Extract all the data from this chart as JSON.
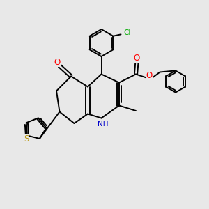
{
  "bg_color": "#e8e8e8",
  "bond_color": "#000000",
  "bond_lw": 1.4,
  "atom_colors": {
    "O": "#ff0000",
    "N": "#0000cc",
    "S": "#b8960c",
    "Cl": "#00aa00",
    "C": "#000000",
    "H": "#000000"
  },
  "font_size": 7.5
}
